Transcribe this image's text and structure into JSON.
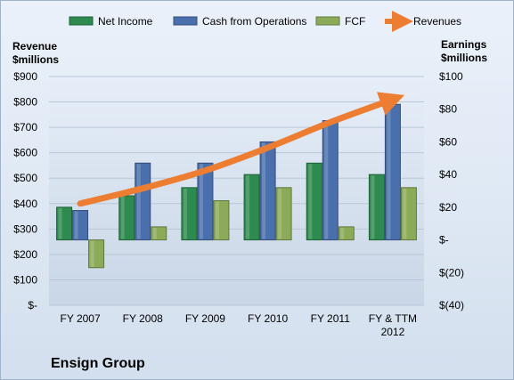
{
  "chart_data": {
    "type": "bar",
    "title": "Ensign Group",
    "categories": [
      [
        "FY 2007"
      ],
      [
        "FY 2008"
      ],
      [
        "FY 2009"
      ],
      [
        "FY 2010"
      ],
      [
        "FY 2011"
      ],
      [
        "FY & TTM",
        "2012"
      ]
    ],
    "left_axis": {
      "label_lines": [
        "Revenue",
        "$millions"
      ],
      "ylim": [
        0,
        900
      ],
      "ticks": [
        0,
        100,
        200,
        300,
        400,
        500,
        600,
        700,
        800,
        900
      ],
      "tick_labels": [
        "$-",
        "$100",
        "$200",
        "$300",
        "$400",
        "$500",
        "$600",
        "$700",
        "$800",
        "$900"
      ]
    },
    "right_axis": {
      "label_lines": [
        "Earnings",
        "$millions"
      ],
      "ylim": [
        -40,
        100
      ],
      "ticks": [
        -40,
        -20,
        0,
        20,
        40,
        60,
        80,
        100
      ],
      "tick_labels": [
        "$(40)",
        "$(20)",
        "$-",
        "$20",
        "$40",
        "$60",
        "$80",
        "$100"
      ]
    },
    "series": [
      {
        "name": "Net Income",
        "kind": "bar",
        "axis": "right",
        "color": "#2e8b4f",
        "values": [
          20,
          27,
          32,
          40,
          47,
          40
        ]
      },
      {
        "name": "Cash from Operations",
        "kind": "bar",
        "axis": "right",
        "color": "#4a6fad",
        "values": [
          18,
          47,
          47,
          60,
          73,
          83
        ]
      },
      {
        "name": "FCF",
        "kind": "bar",
        "axis": "right",
        "color": "#8bab58",
        "values": [
          -17,
          8,
          24,
          32,
          8,
          32
        ]
      },
      {
        "name": "Revenues",
        "kind": "line",
        "axis": "left",
        "color": "#ed7d31",
        "values": [
          400,
          460,
          530,
          620,
          720,
          810
        ]
      }
    ],
    "legend_position": "top",
    "grid": true
  }
}
